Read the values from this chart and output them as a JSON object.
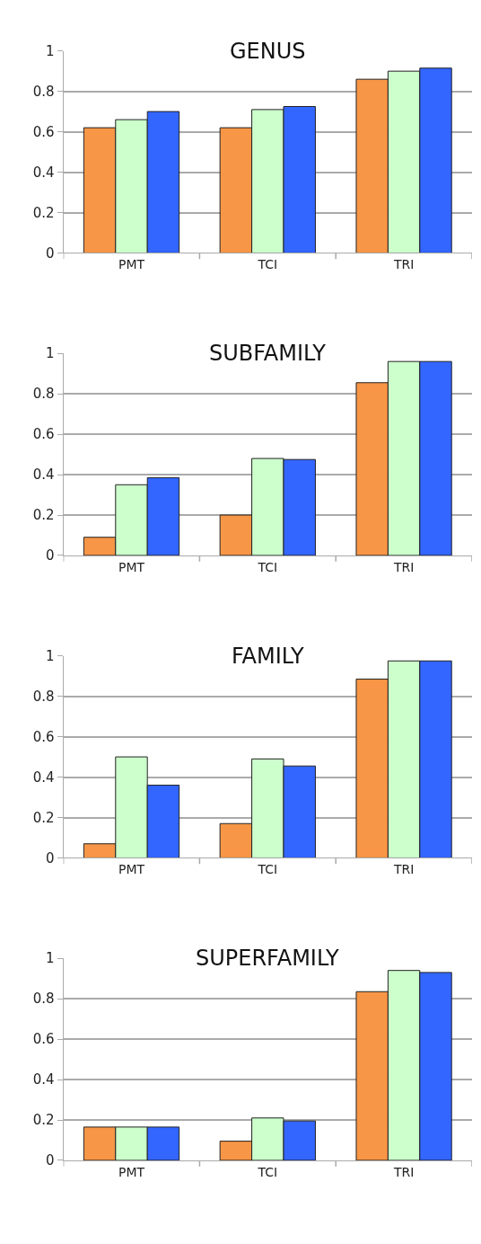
{
  "chart_data": [
    {
      "type": "bar",
      "title": "GENUS",
      "categories": [
        "PMT",
        "TCI",
        "TRI"
      ],
      "ylim": [
        0,
        1
      ],
      "yticks": [
        0,
        0.2,
        0.4,
        0.6,
        0.8,
        1
      ],
      "grid": "y",
      "series": [
        {
          "color": "#f79646",
          "values": [
            0.62,
            0.62,
            0.86
          ]
        },
        {
          "color": "#ccffcc",
          "values": [
            0.66,
            0.71,
            0.9
          ]
        },
        {
          "color": "#3366ff",
          "values": [
            0.7,
            0.725,
            0.915
          ]
        }
      ]
    },
    {
      "type": "bar",
      "title": "SUBFAMILY",
      "categories": [
        "PMT",
        "TCI",
        "TRI"
      ],
      "ylim": [
        0,
        1
      ],
      "yticks": [
        0,
        0.2,
        0.4,
        0.6,
        0.8,
        1
      ],
      "grid": "y",
      "series": [
        {
          "color": "#f79646",
          "values": [
            0.09,
            0.2,
            0.855
          ]
        },
        {
          "color": "#ccffcc",
          "values": [
            0.35,
            0.48,
            0.96
          ]
        },
        {
          "color": "#3366ff",
          "values": [
            0.385,
            0.475,
            0.96
          ]
        }
      ]
    },
    {
      "type": "bar",
      "title": "FAMILY",
      "categories": [
        "PMT",
        "TCI",
        "TRI"
      ],
      "ylim": [
        0,
        1
      ],
      "yticks": [
        0,
        0.2,
        0.4,
        0.6,
        0.8,
        1
      ],
      "grid": "y",
      "series": [
        {
          "color": "#f79646",
          "values": [
            0.07,
            0.17,
            0.885
          ]
        },
        {
          "color": "#ccffcc",
          "values": [
            0.5,
            0.49,
            0.975
          ]
        },
        {
          "color": "#3366ff",
          "values": [
            0.36,
            0.455,
            0.975
          ]
        }
      ]
    },
    {
      "type": "bar",
      "title": "SUPERFAMILY",
      "categories": [
        "PMT",
        "TCI",
        "TRI"
      ],
      "ylim": [
        0,
        1
      ],
      "yticks": [
        0,
        0.2,
        0.4,
        0.6,
        0.8,
        1
      ],
      "grid": "y",
      "series": [
        {
          "color": "#f79646",
          "values": [
            0.165,
            0.095,
            0.835
          ]
        },
        {
          "color": "#ccffcc",
          "values": [
            0.165,
            0.21,
            0.94
          ]
        },
        {
          "color": "#3366ff",
          "values": [
            0.165,
            0.195,
            0.93
          ]
        }
      ]
    }
  ]
}
